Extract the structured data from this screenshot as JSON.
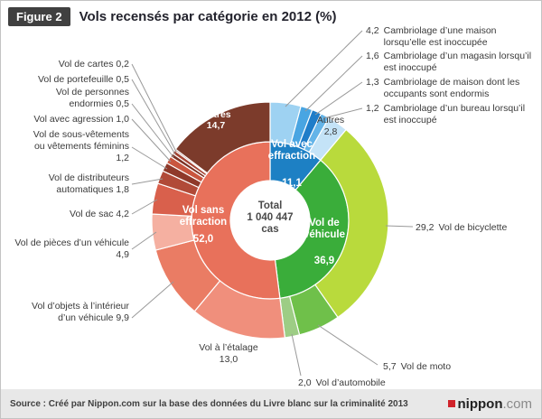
{
  "header": {
    "figure_label": "Figure 2"
  },
  "footer": {
    "source": "Source : Créé par Nippon.com sur la base des données du Livre blanc sur la criminalité 2013",
    "logo_name": "nippon",
    "logo_tld": ".com"
  },
  "chart_data": {
    "type": "pie",
    "subtype": "nested-donut",
    "title": "Vols recensés par catégorie en 2012 (%)",
    "unit": "%",
    "center": {
      "label": "Total",
      "value": "1 040 447",
      "unit": "cas"
    },
    "inner_ring": [
      {
        "name": "Vol avec effraction",
        "value": 11.1,
        "display": "11,1",
        "color": "#1d80c4"
      },
      {
        "name": "Vol de véhicule",
        "value": 36.9,
        "display": "36,9",
        "color": "#3aad3a"
      },
      {
        "name": "Vol sans effraction",
        "value": 52.0,
        "display": "52,0",
        "color": "#e8715b"
      }
    ],
    "outer_ring": [
      {
        "name": "Cambriolage d’une maison lorsqu’elle est inoccupée",
        "value": 4.2,
        "display": "4,2",
        "color": "#9ed2f2",
        "group": "Vol avec effraction"
      },
      {
        "name": "Cambriolage d’un magasin lorsqu’il est inoccupé",
        "value": 1.6,
        "display": "1,6",
        "color": "#49a5e2",
        "group": "Vol avec effraction"
      },
      {
        "name": "Cambriolage de maison dont les occupants sont endormis",
        "value": 1.3,
        "display": "1,3",
        "color": "#1f7dc9",
        "group": "Vol avec effraction"
      },
      {
        "name": "Cambriolage d’un bureau lorsqu’il est inoccupé",
        "value": 1.2,
        "display": "1,2",
        "color": "#64b4e8",
        "group": "Vol avec effraction"
      },
      {
        "name": "Autres",
        "value": 2.8,
        "display": "2,8",
        "color": "#c4e3f7",
        "group": "Vol avec effraction"
      },
      {
        "name": "Vol de bicyclette",
        "value": 29.2,
        "display": "29,2",
        "color": "#b9da3c",
        "group": "Vol de véhicule"
      },
      {
        "name": "Vol de moto",
        "value": 5.7,
        "display": "5,7",
        "color": "#6fc04a",
        "group": "Vol de véhicule"
      },
      {
        "name": "Vol d’automobile",
        "value": 2.0,
        "display": "2,0",
        "color": "#9dcd85",
        "group": "Vol de véhicule"
      },
      {
        "name": "Vol à l’étalage",
        "value": 13.0,
        "display": "13,0",
        "color": "#f08f7c",
        "group": "Vol sans effraction"
      },
      {
        "name": "Vol d’objets à l’intérieur d’un véhicule",
        "value": 9.9,
        "display": "9,9",
        "color": "#ea7c64",
        "group": "Vol sans effraction"
      },
      {
        "name": "Vol de pièces d’un véhicule",
        "value": 4.9,
        "display": "4,9",
        "color": "#f5b0a1",
        "group": "Vol sans effraction"
      },
      {
        "name": "Vol de sac",
        "value": 4.2,
        "display": "4,2",
        "color": "#d9604c",
        "group": "Vol sans effraction"
      },
      {
        "name": "Vol de distributeurs automatiques",
        "value": 1.8,
        "display": "1,8",
        "color": "#b14a38",
        "group": "Vol sans effraction"
      },
      {
        "name": "Vol de sous-vêtements ou vêtements féminins",
        "value": 1.2,
        "display": "1,2",
        "color": "#8f392a",
        "group": "Vol sans effraction"
      },
      {
        "name": "Vol avec agression",
        "value": 1.0,
        "display": "1,0",
        "color": "#c9563f",
        "group": "Vol sans effraction"
      },
      {
        "name": "Vol de personnes endormies",
        "value": 0.5,
        "display": "0,5",
        "color": "#7d3123",
        "group": "Vol sans effraction"
      },
      {
        "name": "Vol de portefeuille",
        "value": 0.5,
        "display": "0,5",
        "color": "#a64433",
        "group": "Vol sans effraction"
      },
      {
        "name": "Vol de cartes",
        "value": 0.2,
        "display": "0,2",
        "color": "#6e2a1e",
        "group": "Vol sans effraction"
      },
      {
        "name": "Autres",
        "value": 14.7,
        "display": "14,7",
        "color": "#7c3b2b",
        "group": "Vol sans effraction"
      }
    ]
  }
}
